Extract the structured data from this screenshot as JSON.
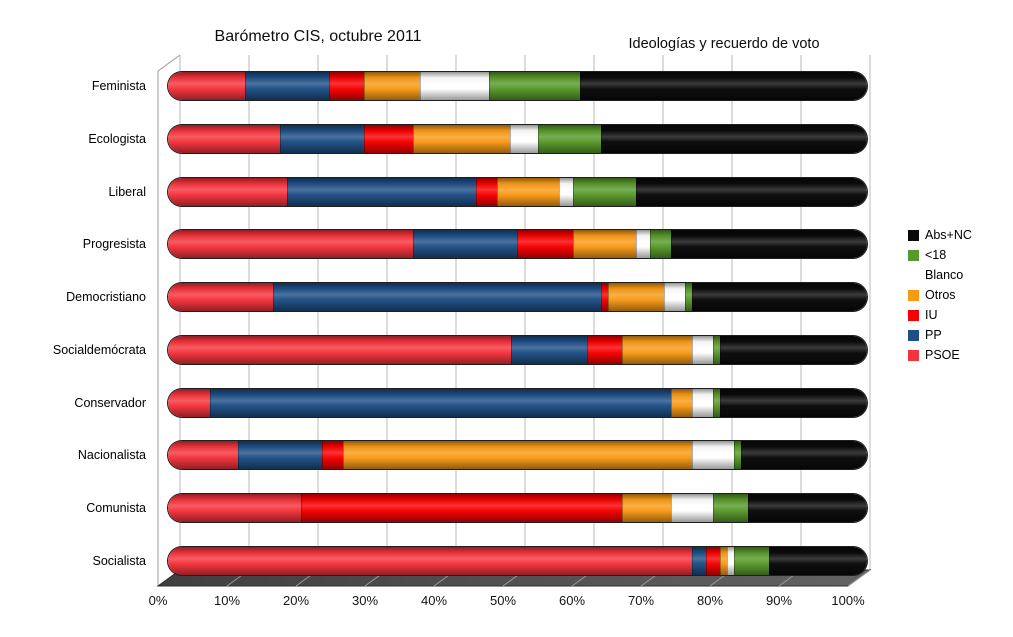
{
  "titles": {
    "left": "Barómetro CIS, octubre 2011",
    "right": "Ideologías y recuerdo de voto"
  },
  "chart_data": {
    "type": "bar",
    "variant": "horizontal-stacked-3d-cylinder",
    "title": "Barómetro CIS, octubre 2011",
    "subtitle": "Ideologías y recuerdo de voto",
    "unit": "%",
    "grid": true,
    "categories": [
      "Feminista",
      "Ecologista",
      "Liberal",
      "Progresista",
      "Democristiano",
      "Socialdemócrata",
      "Conservador",
      "Nacionalista",
      "Comunista",
      "Socialista"
    ],
    "series": [
      {
        "name": "PSOE",
        "color": "#f5333c",
        "values": [
          11,
          16,
          17,
          35,
          15,
          49,
          6,
          10,
          19,
          75
        ]
      },
      {
        "name": "PP",
        "color": "#1e4f86",
        "values": [
          12,
          12,
          27,
          15,
          47,
          11,
          66,
          12,
          0,
          2
        ]
      },
      {
        "name": "IU",
        "color": "#f70000",
        "values": [
          5,
          7,
          3,
          8,
          1,
          5,
          0,
          3,
          46,
          2
        ]
      },
      {
        "name": "Otros",
        "color": "#f89a16",
        "values": [
          8,
          14,
          9,
          9,
          8,
          10,
          3,
          50,
          7,
          1
        ]
      },
      {
        "name": "Blanco",
        "color": "#ffffff",
        "values": [
          10,
          4,
          2,
          2,
          3,
          3,
          3,
          6,
          6,
          1
        ]
      },
      {
        "name": "<18",
        "color": "#58992b",
        "values": [
          13,
          9,
          9,
          3,
          1,
          1,
          1,
          1,
          5,
          5
        ]
      },
      {
        "name": "Abs+NC",
        "color": "#0a0a0a",
        "values": [
          41,
          38,
          33,
          28,
          25,
          21,
          21,
          18,
          17,
          14
        ]
      }
    ],
    "x_axis": {
      "min": 0,
      "max": 100,
      "ticks": [
        "0%",
        "10%",
        "20%",
        "30%",
        "40%",
        "50%",
        "60%",
        "70%",
        "80%",
        "90%",
        "100%"
      ]
    },
    "legend": {
      "position": "right",
      "order": [
        "Abs+NC",
        "<18",
        "Blanco",
        "Otros",
        "IU",
        "PP",
        "PSOE"
      ]
    },
    "colors_note": {
      "gridline": "#b9b9b9",
      "floor": "#4d4d4d",
      "wall_edge": "#ababab"
    }
  }
}
